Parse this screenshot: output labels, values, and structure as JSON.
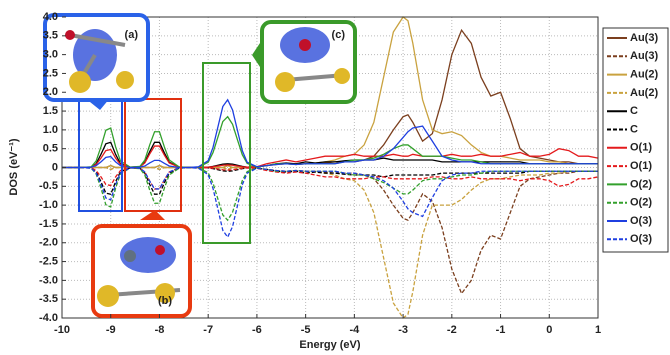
{
  "chart_data": {
    "type": "line",
    "xlabel": "Energy (eV)",
    "ylabel": "DOS (eV⁻¹)",
    "annotations": [
      "(a)",
      "(b)",
      "(c)"
    ],
    "xlim": [
      -10,
      1
    ],
    "ylim": [
      -4,
      4
    ],
    "xticks": [
      -10,
      -9,
      -8,
      -7,
      -6,
      -5,
      -4,
      -3,
      -2,
      -1,
      0,
      1
    ],
    "yticks": [
      {
        "value": 4,
        "label": "4.0"
      },
      3.5,
      {
        "value": 3,
        "label": "3.0"
      },
      2.5,
      {
        "value": 2,
        "label": "2.0"
      },
      1.5,
      {
        "value": 1,
        "label": "1.0"
      },
      0.5,
      0,
      -0.5,
      {
        "value": -1,
        "label": "-1.0"
      },
      -1.5,
      {
        "value": -2,
        "label": "-2.0"
      },
      -2.5,
      {
        "value": -3,
        "label": "-3.0"
      },
      -3.5,
      {
        "value": -4,
        "label": "-4.0"
      }
    ],
    "grid": true,
    "legend": "right",
    "x": [
      -10,
      -9.8,
      -9.6,
      -9.4,
      -9.3,
      -9.2,
      -9.1,
      -9.0,
      -8.9,
      -8.8,
      -8.6,
      -8.4,
      -8.3,
      -8.2,
      -8.1,
      -8.0,
      -7.9,
      -7.8,
      -7.6,
      -7.4,
      -7.2,
      -7.0,
      -6.9,
      -6.8,
      -6.7,
      -6.6,
      -6.5,
      -6.4,
      -6.3,
      -6.2,
      -6.0,
      -5.8,
      -5.6,
      -5.4,
      -5.2,
      -5.0,
      -4.8,
      -4.6,
      -4.4,
      -4.2,
      -4.0,
      -3.8,
      -3.6,
      -3.4,
      -3.2,
      -3.0,
      -2.9,
      -2.8,
      -2.6,
      -2.4,
      -2.2,
      -2.0,
      -1.8,
      -1.6,
      -1.4,
      -1.2,
      -1.0,
      -0.8,
      -0.6,
      -0.4,
      -0.2,
      0,
      0.2,
      0.4,
      0.6,
      0.8,
      1.0
    ],
    "series": [
      {
        "name": "Au(3)",
        "color": "#7b3f1e",
        "linestyle": "solid",
        "values": [
          0,
          0,
          0,
          0,
          0,
          0,
          0,
          0.05,
          0,
          0,
          0,
          0,
          0,
          0,
          0,
          0.05,
          0,
          0,
          0,
          0,
          0,
          0,
          0,
          0,
          0,
          0.05,
          0,
          0,
          0,
          0,
          0.02,
          0.05,
          0.08,
          0.1,
          0.08,
          0.1,
          0.1,
          0.12,
          0.15,
          0.15,
          0.15,
          0.2,
          0.3,
          0.6,
          1.0,
          1.35,
          1.4,
          1.2,
          0.7,
          0.9,
          1.8,
          3.0,
          3.65,
          3.3,
          2.4,
          1.9,
          2.0,
          1.3,
          0.5,
          0.3,
          0.25,
          0.2,
          0.15,
          0.15,
          0.1,
          0.1,
          0.1
        ]
      },
      {
        "name": "Au(3)",
        "color": "#7b3f1e",
        "linestyle": "dashed",
        "values": [
          0,
          0,
          0,
          0,
          0,
          0,
          0,
          -0.05,
          0,
          0,
          0,
          0,
          0,
          0,
          0,
          -0.05,
          0,
          0,
          0,
          0,
          0,
          0,
          0,
          0,
          0,
          -0.05,
          0,
          0,
          0,
          0,
          -0.02,
          -0.05,
          -0.08,
          -0.1,
          -0.08,
          -0.1,
          -0.1,
          -0.12,
          -0.15,
          -0.15,
          -0.15,
          -0.2,
          -0.3,
          -0.6,
          -1.0,
          -1.35,
          -1.4,
          -1.2,
          -0.7,
          -0.9,
          -1.6,
          -2.7,
          -3.35,
          -3.0,
          -2.2,
          -1.8,
          -1.9,
          -1.2,
          -0.5,
          -0.3,
          -0.25,
          -0.2,
          -0.15,
          -0.15,
          -0.1,
          -0.1,
          -0.1
        ]
      },
      {
        "name": "Au(2)",
        "color": "#c9a23f",
        "linestyle": "solid",
        "values": [
          0,
          0,
          0,
          0,
          0,
          0,
          0,
          0.05,
          0,
          0,
          0,
          0,
          0,
          0,
          0,
          0.05,
          0,
          0,
          0,
          0,
          0,
          0,
          0,
          0,
          0,
          0.05,
          0,
          0,
          0,
          0,
          0.02,
          0.05,
          0.08,
          0.1,
          0.1,
          0.1,
          0.12,
          0.15,
          0.2,
          0.3,
          0.35,
          0.6,
          1.2,
          2.4,
          3.6,
          4.0,
          3.9,
          3.3,
          1.8,
          1.0,
          0.9,
          0.95,
          0.85,
          0.6,
          0.4,
          0.3,
          0.3,
          0.25,
          0.2,
          0.2,
          0.2,
          0.15,
          0.15,
          0.1,
          0.1,
          0.1,
          0.1
        ]
      },
      {
        "name": "Au(2)",
        "color": "#c9a23f",
        "linestyle": "dashed",
        "values": [
          0,
          0,
          0,
          0,
          0,
          0,
          0,
          -0.05,
          0,
          0,
          0,
          0,
          0,
          0,
          0,
          -0.05,
          0,
          0,
          0,
          0,
          0,
          0,
          0,
          0,
          0,
          -0.05,
          0,
          0,
          0,
          0,
          -0.02,
          -0.05,
          -0.08,
          -0.1,
          -0.1,
          -0.1,
          -0.12,
          -0.15,
          -0.2,
          -0.3,
          -0.35,
          -0.6,
          -1.2,
          -2.4,
          -3.6,
          -4.0,
          -3.9,
          -3.3,
          -1.8,
          -1.0,
          -1.0,
          -1.0,
          -0.85,
          -0.6,
          -0.4,
          -0.3,
          -0.3,
          -0.25,
          -0.2,
          -0.2,
          -0.2,
          -0.15,
          -0.15,
          -0.1,
          -0.1,
          -0.1,
          -0.1
        ]
      },
      {
        "name": "C",
        "color": "#000000",
        "linestyle": "solid",
        "values": [
          0,
          0,
          0,
          0.01,
          0.1,
          0.35,
          0.63,
          0.67,
          0.35,
          0.1,
          0.01,
          0.02,
          0.14,
          0.42,
          0.67,
          0.67,
          0.39,
          0.14,
          0.01,
          0,
          0,
          0.01,
          0.03,
          0.06,
          0.09,
          0.1,
          0.09,
          0.06,
          0.03,
          0.01,
          0.02,
          0.05,
          0.1,
          0.12,
          0.1,
          0.15,
          0.12,
          0.15,
          0.15,
          0.18,
          0.2,
          0.2,
          0.2,
          0.25,
          0.2,
          0.2,
          0.2,
          0.2,
          0.2,
          0.2,
          0.15,
          0.15,
          0.15,
          0.15,
          0.15,
          0.15,
          0.15,
          0.15,
          0.15,
          0.1,
          0.1,
          0.1,
          0.1,
          0.1,
          0.1,
          0.1,
          0.1
        ]
      },
      {
        "name": "C",
        "color": "#000000",
        "linestyle": "dashed",
        "values": [
          0,
          0,
          0,
          -0.01,
          -0.11,
          -0.38,
          -0.68,
          -0.71,
          -0.38,
          -0.11,
          -0.01,
          -0.02,
          -0.15,
          -0.45,
          -0.71,
          -0.71,
          -0.41,
          -0.15,
          -0.02,
          0,
          0,
          -0.01,
          -0.03,
          -0.06,
          -0.09,
          -0.1,
          -0.09,
          -0.06,
          -0.03,
          -0.01,
          -0.02,
          -0.05,
          -0.1,
          -0.12,
          -0.1,
          -0.15,
          -0.12,
          -0.15,
          -0.15,
          -0.18,
          -0.2,
          -0.2,
          -0.2,
          -0.25,
          -0.2,
          -0.2,
          -0.2,
          -0.2,
          -0.2,
          -0.2,
          -0.15,
          -0.15,
          -0.15,
          -0.15,
          -0.15,
          -0.15,
          -0.15,
          -0.15,
          -0.15,
          -0.1,
          -0.1,
          -0.1,
          -0.1,
          -0.1,
          -0.1,
          -0.1,
          -0.1
        ]
      },
      {
        "name": "O(1)",
        "color": "#e41a1c",
        "linestyle": "solid",
        "values": [
          0,
          0,
          0,
          0.01,
          0.08,
          0.25,
          0.45,
          0.48,
          0.25,
          0.08,
          0.01,
          0.02,
          0.12,
          0.36,
          0.57,
          0.57,
          0.33,
          0.12,
          0.01,
          0,
          0,
          0.01,
          0.02,
          0.04,
          0.06,
          0.07,
          0.06,
          0.04,
          0.02,
          0.01,
          0.02,
          0.1,
          0.15,
          0.2,
          0.15,
          0.2,
          0.25,
          0.3,
          0.3,
          0.3,
          0.35,
          0.3,
          0.3,
          0.3,
          0.35,
          0.3,
          0.3,
          0.35,
          0.3,
          0.3,
          0.3,
          0.35,
          0.3,
          0.3,
          0.35,
          0.3,
          0.3,
          0.35,
          0.4,
          0.3,
          0.3,
          0.35,
          0.5,
          0.45,
          0.3,
          0.3,
          0.25
        ]
      },
      {
        "name": "O(1)",
        "color": "#e41a1c",
        "linestyle": "dashed",
        "values": [
          0,
          0,
          0,
          -0.01,
          -0.08,
          -0.25,
          -0.45,
          -0.48,
          -0.25,
          -0.08,
          -0.01,
          -0.02,
          -0.12,
          -0.36,
          -0.57,
          -0.57,
          -0.33,
          -0.12,
          -0.01,
          0,
          0,
          -0.01,
          -0.02,
          -0.04,
          -0.06,
          -0.07,
          -0.06,
          -0.04,
          -0.02,
          -0.01,
          -0.02,
          -0.08,
          -0.12,
          -0.15,
          -0.12,
          -0.15,
          -0.2,
          -0.25,
          -0.25,
          -0.3,
          -0.3,
          -0.3,
          -0.25,
          -0.25,
          -0.3,
          -0.3,
          -0.3,
          -0.3,
          -0.3,
          -0.25,
          -0.25,
          -0.3,
          -0.3,
          -0.25,
          -0.3,
          -0.3,
          -0.3,
          -0.3,
          -0.35,
          -0.3,
          -0.3,
          -0.35,
          -0.5,
          -0.45,
          -0.3,
          -0.3,
          -0.25
        ]
      },
      {
        "name": "O(2)",
        "color": "#33a02c",
        "linestyle": "solid",
        "values": [
          0,
          0,
          0,
          0.02,
          0.17,
          0.55,
          0.99,
          1.05,
          0.55,
          0.17,
          0.01,
          0.03,
          0.2,
          0.6,
          0.95,
          0.95,
          0.55,
          0.2,
          0.02,
          0,
          0.01,
          0.14,
          0.4,
          0.81,
          1.22,
          1.35,
          1.15,
          0.74,
          0.34,
          0.11,
          0.01,
          0.05,
          0.1,
          0.1,
          0.08,
          0.1,
          0.1,
          0.1,
          0.1,
          0.15,
          0.2,
          0.2,
          0.25,
          0.35,
          0.5,
          0.6,
          0.6,
          0.5,
          0.3,
          0.3,
          0.3,
          0.25,
          0.2,
          0.2,
          0.15,
          0.1,
          0.1,
          0.1,
          0.1,
          0.1,
          0.1,
          0.1,
          0.1,
          0.1,
          0.1,
          0.1,
          0.1
        ]
      },
      {
        "name": "O(2)",
        "color": "#33a02c",
        "linestyle": "dashed",
        "values": [
          0,
          0,
          0,
          -0.02,
          -0.17,
          -0.55,
          -0.99,
          -1.05,
          -0.55,
          -0.17,
          -0.01,
          -0.03,
          -0.2,
          -0.6,
          -0.95,
          -0.95,
          -0.55,
          -0.2,
          -0.02,
          0,
          -0.01,
          -0.14,
          -0.42,
          -0.84,
          -1.26,
          -1.4,
          -1.19,
          -0.77,
          -0.35,
          -0.11,
          -0.01,
          -0.05,
          -0.1,
          -0.1,
          -0.08,
          -0.1,
          -0.1,
          -0.1,
          -0.1,
          -0.15,
          -0.2,
          -0.2,
          -0.3,
          -0.4,
          -0.55,
          -0.7,
          -0.7,
          -0.6,
          -0.35,
          -0.3,
          -0.3,
          -0.25,
          -0.2,
          -0.2,
          -0.15,
          -0.1,
          -0.1,
          -0.1,
          -0.1,
          -0.1,
          -0.1,
          -0.1,
          -0.1,
          -0.1,
          -0.1,
          -0.1,
          -0.1
        ]
      },
      {
        "name": "O(3)",
        "color": "#1f3fe0",
        "linestyle": "solid",
        "values": [
          0,
          0,
          0,
          0.01,
          0.05,
          0.15,
          0.27,
          0.29,
          0.15,
          0.05,
          0,
          0.01,
          0.04,
          0.12,
          0.19,
          0.19,
          0.11,
          0.04,
          0,
          0,
          0.02,
          0.18,
          0.54,
          1.08,
          1.62,
          1.8,
          1.53,
          0.99,
          0.45,
          0.14,
          0.02,
          0.05,
          0.08,
          0.1,
          0.08,
          0.1,
          0.1,
          0.1,
          0.1,
          0.15,
          0.15,
          0.2,
          0.2,
          0.3,
          0.5,
          0.8,
          0.95,
          1.05,
          1.1,
          0.7,
          0.3,
          0.2,
          0.15,
          0.15,
          0.1,
          0.1,
          0.1,
          0.1,
          0.1,
          0.1,
          0.1,
          0.1,
          0.1,
          0.1,
          0.1,
          0.1,
          0.1
        ]
      },
      {
        "name": "O(3)",
        "color": "#1f3fe0",
        "linestyle": "dashed",
        "values": [
          0,
          0,
          0,
          -0.02,
          -0.14,
          -0.45,
          -0.81,
          -0.86,
          -0.45,
          -0.14,
          -0.01,
          -0.02,
          -0.12,
          -0.36,
          -0.57,
          -0.57,
          -0.33,
          -0.12,
          -0.01,
          0,
          -0.02,
          -0.19,
          -0.56,
          -1.11,
          -1.67,
          -1.85,
          -1.57,
          -1.02,
          -0.46,
          -0.15,
          -0.02,
          -0.05,
          -0.08,
          -0.1,
          -0.08,
          -0.1,
          -0.1,
          -0.1,
          -0.1,
          -0.15,
          -0.15,
          -0.2,
          -0.25,
          -0.35,
          -0.55,
          -0.9,
          -1.1,
          -1.2,
          -1.3,
          -0.8,
          -0.35,
          -0.2,
          -0.15,
          -0.15,
          -0.1,
          -0.1,
          -0.1,
          -0.1,
          -0.1,
          -0.1,
          -0.1,
          -0.1,
          -0.1,
          -0.1,
          -0.1,
          -0.1,
          -0.1
        ]
      }
    ]
  }
}
